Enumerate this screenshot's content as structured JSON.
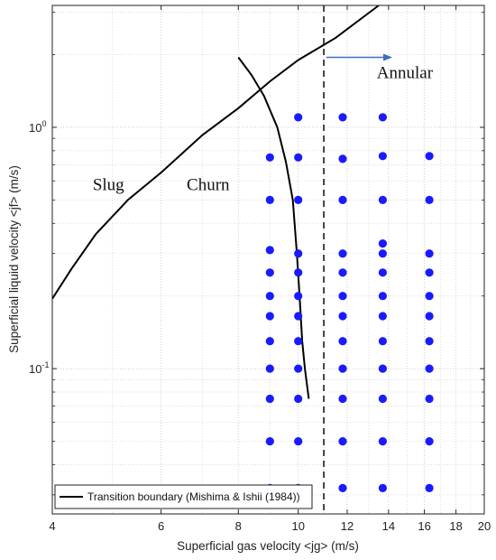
{
  "chart_data": {
    "type": "scatter",
    "xlabel": "Superficial gas velocity <jg> (m/s)",
    "ylabel": "Superficial liquid velocity <jf> (m/s)",
    "x_scale": "log",
    "y_scale": "log",
    "xlim": [
      4,
      20
    ],
    "ylim": [
      0.025,
      3.2
    ],
    "x_ticks": [
      {
        "value": 4,
        "label": "4"
      },
      {
        "value": 6,
        "label": "6"
      },
      {
        "value": 8,
        "label": "8"
      },
      {
        "value": 10,
        "label": "10"
      },
      {
        "value": 12,
        "label": "12"
      },
      {
        "value": 14,
        "label": "14"
      },
      {
        "value": 16,
        "label": "16"
      },
      {
        "value": 18,
        "label": "18"
      },
      {
        "value": 20,
        "label": "20"
      }
    ],
    "y_ticks": [
      {
        "value": 0.1,
        "label": "10",
        "exp": "-1"
      },
      {
        "value": 1,
        "label": "10",
        "exp": "0"
      }
    ],
    "grid": true,
    "legend_position": "bottom-left",
    "legend": [
      {
        "name": "Transition boundary (Mishima & Ishii (1984))",
        "color": "#000000"
      }
    ],
    "series": [
      {
        "kind": "points",
        "color": "#1a1aff",
        "points": [
          [
            9.0,
            0.032
          ],
          [
            10.0,
            0.032
          ],
          [
            11.8,
            0.032
          ],
          [
            13.7,
            0.032
          ],
          [
            16.3,
            0.032
          ],
          [
            9.0,
            0.05
          ],
          [
            10.0,
            0.05
          ],
          [
            11.8,
            0.05
          ],
          [
            13.7,
            0.05
          ],
          [
            16.3,
            0.05
          ],
          [
            9.0,
            0.075
          ],
          [
            10.0,
            0.075
          ],
          [
            11.8,
            0.075
          ],
          [
            13.7,
            0.075
          ],
          [
            16.3,
            0.075
          ],
          [
            9.0,
            0.1
          ],
          [
            10.0,
            0.1
          ],
          [
            11.8,
            0.1
          ],
          [
            13.7,
            0.1
          ],
          [
            16.3,
            0.1
          ],
          [
            9.0,
            0.13
          ],
          [
            10.0,
            0.13
          ],
          [
            11.8,
            0.13
          ],
          [
            13.7,
            0.13
          ],
          [
            16.3,
            0.13
          ],
          [
            9.0,
            0.165
          ],
          [
            10.0,
            0.165
          ],
          [
            11.8,
            0.165
          ],
          [
            13.7,
            0.165
          ],
          [
            16.3,
            0.165
          ],
          [
            9.0,
            0.2
          ],
          [
            10.0,
            0.2
          ],
          [
            11.8,
            0.2
          ],
          [
            13.7,
            0.2
          ],
          [
            16.3,
            0.2
          ],
          [
            9.0,
            0.25
          ],
          [
            10.0,
            0.25
          ],
          [
            11.8,
            0.25
          ],
          [
            13.7,
            0.25
          ],
          [
            16.3,
            0.25
          ],
          [
            9.0,
            0.31
          ],
          [
            10.0,
            0.3
          ],
          [
            11.8,
            0.3
          ],
          [
            13.7,
            0.3
          ],
          [
            16.3,
            0.3
          ],
          [
            13.7,
            0.33
          ],
          [
            9.0,
            0.5
          ],
          [
            10.0,
            0.5
          ],
          [
            11.8,
            0.5
          ],
          [
            13.7,
            0.5
          ],
          [
            16.3,
            0.5
          ],
          [
            9.0,
            0.75
          ],
          [
            10.0,
            0.75
          ],
          [
            11.8,
            0.74
          ],
          [
            13.7,
            0.76
          ],
          [
            16.3,
            0.76
          ],
          [
            10.0,
            1.1
          ],
          [
            11.8,
            1.1
          ],
          [
            13.7,
            1.1
          ]
        ]
      },
      {
        "kind": "line",
        "name": "Transition boundary (Mishima & Ishii (1984))",
        "color": "#000000",
        "points": [
          [
            4.0,
            0.195
          ],
          [
            4.3,
            0.26
          ],
          [
            4.7,
            0.36
          ],
          [
            5.3,
            0.5
          ],
          [
            6.0,
            0.65
          ],
          [
            7.0,
            0.93
          ],
          [
            8.0,
            1.2
          ],
          [
            9.0,
            1.55
          ],
          [
            10.0,
            1.9
          ],
          [
            11.5,
            2.35
          ],
          [
            13.5,
            3.2
          ]
        ]
      },
      {
        "kind": "line",
        "name": "",
        "color": "#000000",
        "points": [
          [
            8.0,
            1.95
          ],
          [
            8.4,
            1.65
          ],
          [
            8.8,
            1.35
          ],
          [
            9.25,
            1.0
          ],
          [
            9.55,
            0.72
          ],
          [
            9.8,
            0.5
          ],
          [
            9.95,
            0.3
          ],
          [
            10.05,
            0.2
          ],
          [
            10.15,
            0.13
          ],
          [
            10.25,
            0.1
          ],
          [
            10.4,
            0.075
          ]
        ]
      }
    ],
    "vline": {
      "x": 11.0,
      "style": "dashed"
    },
    "annotations": [
      {
        "text": "Slug",
        "x": 4.65,
        "y": 0.55
      },
      {
        "text": "Churn",
        "x": 6.6,
        "y": 0.55
      },
      {
        "text": "Annular",
        "x": 13.4,
        "y": 1.6
      }
    ],
    "arrow": {
      "from": [
        11.1,
        1.95
      ],
      "to": [
        14.2,
        1.95
      ],
      "color": "#3d6fb6"
    }
  }
}
